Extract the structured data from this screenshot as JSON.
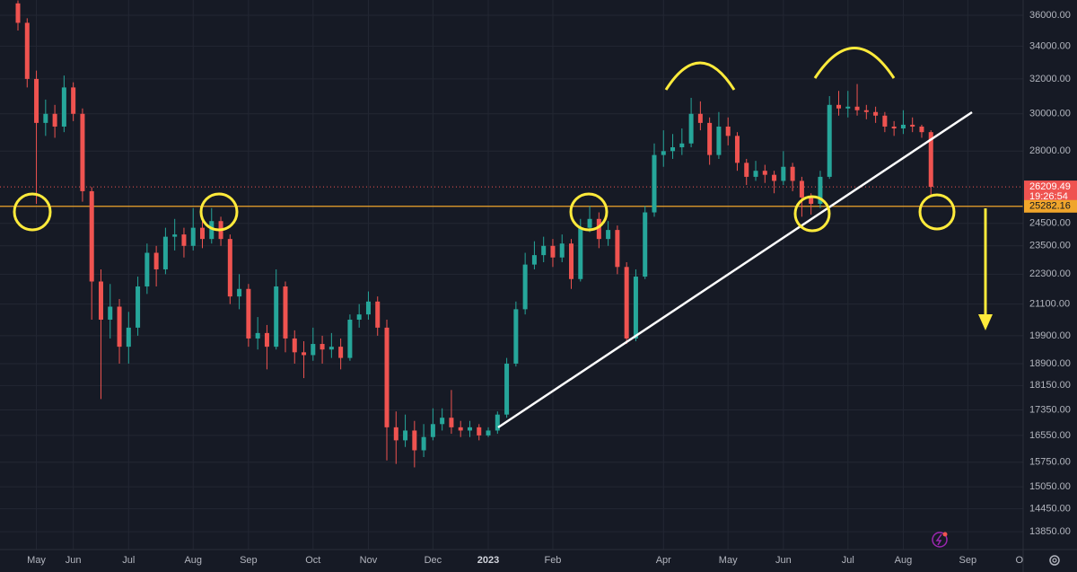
{
  "chart_data": {
    "type": "candlestick",
    "log_scale": true,
    "grid": true,
    "up_color": "#26a69a",
    "down_color": "#ef5350",
    "level_color": "#f0a52b",
    "ylim": [
      13400,
      37030
    ],
    "yticks": [
      {
        "value": 36000,
        "label": "36000.00"
      },
      {
        "value": 34000,
        "label": "34000.00"
      },
      {
        "value": 32000,
        "label": "32000.00"
      },
      {
        "value": 30000,
        "label": "30000.00"
      },
      {
        "value": 28000,
        "label": "28000.00"
      },
      {
        "value": 24500,
        "label": "24500.00"
      },
      {
        "value": 23500,
        "label": "23500.00"
      },
      {
        "value": 22300,
        "label": "22300.00"
      },
      {
        "value": 21100,
        "label": "21100.00"
      },
      {
        "value": 19900,
        "label": "19900.00"
      },
      {
        "value": 18900,
        "label": "18900.00"
      },
      {
        "value": 18150,
        "label": "18150.00"
      },
      {
        "value": 17350,
        "label": "17350.00"
      },
      {
        "value": 16550,
        "label": "16550.00"
      },
      {
        "value": 15750,
        "label": "15750.00"
      },
      {
        "value": 15050,
        "label": "15050.00"
      },
      {
        "value": 14450,
        "label": "14450.00"
      },
      {
        "value": 13850,
        "label": "13850.00"
      }
    ],
    "last_price": 26209.49,
    "countdown": "19:26:54",
    "level": 25282.16,
    "categories": [
      null,
      null,
      "May",
      null,
      null,
      null,
      "Jun",
      null,
      null,
      null,
      null,
      null,
      "Jul",
      null,
      null,
      null,
      null,
      null,
      null,
      "Aug",
      null,
      null,
      null,
      null,
      null,
      "Sep",
      null,
      null,
      null,
      null,
      null,
      null,
      "Oct",
      null,
      null,
      null,
      null,
      null,
      "Nov",
      null,
      null,
      null,
      null,
      null,
      null,
      "Dec",
      null,
      null,
      null,
      null,
      null,
      "2023",
      null,
      null,
      null,
      null,
      null,
      null,
      "Feb",
      null,
      null,
      null,
      null,
      null,
      null,
      null,
      null,
      null,
      null,
      null,
      "Apr",
      null,
      null,
      null,
      null,
      null,
      null,
      "May",
      null,
      null,
      null,
      null,
      null,
      "Jun",
      null,
      null,
      null,
      null,
      null,
      null,
      "Jul",
      null,
      null,
      null,
      null,
      null,
      "Aug",
      null,
      null,
      null,
      null,
      null,
      null,
      "Sep",
      null,
      null,
      null,
      null,
      null,
      "Oct"
    ],
    "open": [
      36800,
      35500,
      32000,
      29500,
      30000,
      29300,
      31500,
      30000,
      26000,
      22000,
      20500,
      21000,
      19500,
      20200,
      21800,
      23200,
      22500,
      23900,
      24000,
      23500,
      24300,
      23800,
      24600,
      23800,
      21400,
      21700,
      19800,
      20000,
      19500,
      21800,
      19800,
      19300,
      19200,
      19600,
      19400,
      19500,
      19100,
      20500,
      20700,
      21200,
      20200,
      16800,
      16400,
      16700,
      16100,
      16500,
      16900,
      17100,
      16800,
      16700,
      16800,
      16550,
      16700,
      17200,
      18900,
      20900,
      22700,
      23100,
      23500,
      23000,
      23600,
      22100,
      24300,
      24700,
      23800,
      24200,
      22600,
      19800,
      22200,
      25000,
      27800,
      28000,
      28200,
      28400,
      30000,
      29500,
      27800,
      29300,
      28800,
      27400,
      26700,
      27000,
      26800,
      26500,
      27200,
      26500,
      25700,
      25400,
      26700,
      30500,
      30300,
      30400,
      30200,
      30100,
      29900,
      29300,
      29200,
      29400,
      29300,
      29000,
      null,
      null,
      null,
      null,
      null,
      null,
      null,
      null,
      null,
      null
    ],
    "high": [
      37000,
      35800,
      32500,
      30800,
      30500,
      32200,
      31800,
      30300,
      26200,
      22500,
      21900,
      21300,
      20800,
      22200,
      23600,
      23500,
      24300,
      24700,
      24300,
      25200,
      24600,
      25200,
      24800,
      24000,
      22300,
      21900,
      20600,
      20300,
      22500,
      22000,
      20100,
      19700,
      20200,
      19900,
      20000,
      19800,
      20700,
      21100,
      21600,
      21400,
      20500,
      17300,
      17200,
      17000,
      16900,
      17400,
      17400,
      18000,
      17000,
      17000,
      16900,
      16800,
      17300,
      19100,
      21200,
      23200,
      23700,
      23900,
      23800,
      24000,
      23800,
      24700,
      25300,
      25000,
      24600,
      24400,
      22800,
      22500,
      25300,
      28400,
      29100,
      28900,
      29200,
      30900,
      30700,
      29800,
      30100,
      29800,
      29000,
      27600,
      27500,
      27300,
      27000,
      28000,
      27400,
      26700,
      25900,
      27000,
      31000,
      31300,
      31300,
      31700,
      30500,
      30400,
      30100,
      29600,
      30200,
      29800,
      29400,
      29100,
      null,
      null,
      null,
      null,
      null,
      null,
      null,
      null,
      null,
      null
    ],
    "low": [
      35000,
      31500,
      25400,
      28800,
      28700,
      29000,
      29600,
      25500,
      20500,
      17700,
      19800,
      18900,
      18900,
      19900,
      21500,
      21800,
      22300,
      23300,
      23000,
      23300,
      23400,
      23600,
      23500,
      21100,
      20900,
      19500,
      19400,
      18700,
      19400,
      19300,
      18900,
      18400,
      19000,
      18900,
      19100,
      18700,
      19000,
      20200,
      20500,
      19900,
      15800,
      15700,
      16200,
      15600,
      15900,
      16400,
      16700,
      16600,
      16500,
      16500,
      16400,
      16500,
      16600,
      17100,
      18800,
      20700,
      22500,
      22800,
      22600,
      22800,
      21700,
      22000,
      24100,
      23400,
      23500,
      22300,
      19600,
      19700,
      22100,
      24800,
      27200,
      27600,
      27800,
      28200,
      29100,
      27300,
      27600,
      28300,
      27000,
      26300,
      26500,
      26400,
      25900,
      26300,
      26000,
      24800,
      24900,
      25200,
      26600,
      29900,
      29800,
      29900,
      29700,
      29500,
      29000,
      28800,
      28900,
      29000,
      28700,
      25800,
      null,
      null,
      null,
      null,
      null,
      null,
      null,
      null,
      null,
      null
    ],
    "close": [
      35500,
      32000,
      29500,
      30000,
      29300,
      31500,
      30000,
      26000,
      22000,
      20500,
      21000,
      19500,
      20200,
      21800,
      23200,
      22500,
      23900,
      24000,
      23500,
      24300,
      23800,
      24600,
      23800,
      21400,
      21700,
      19800,
      20000,
      19500,
      21800,
      19800,
      19300,
      19200,
      19600,
      19400,
      19500,
      19100,
      20500,
      20700,
      21200,
      20200,
      16800,
      16400,
      16700,
      16100,
      16500,
      16900,
      17100,
      16800,
      16700,
      16800,
      16550,
      16700,
      17200,
      18900,
      20900,
      22700,
      23100,
      23500,
      23000,
      23600,
      22100,
      24300,
      24700,
      23800,
      24200,
      22600,
      19800,
      22200,
      25000,
      27800,
      28000,
      28200,
      28400,
      30000,
      29500,
      27800,
      29300,
      28800,
      27400,
      26700,
      27000,
      26800,
      26500,
      27200,
      26500,
      25700,
      25400,
      26700,
      30500,
      30300,
      30400,
      30200,
      30100,
      29900,
      29300,
      29200,
      29400,
      29300,
      29000,
      26209.49,
      null,
      null,
      null,
      null,
      null,
      null,
      null,
      null,
      null,
      null
    ]
  }
}
